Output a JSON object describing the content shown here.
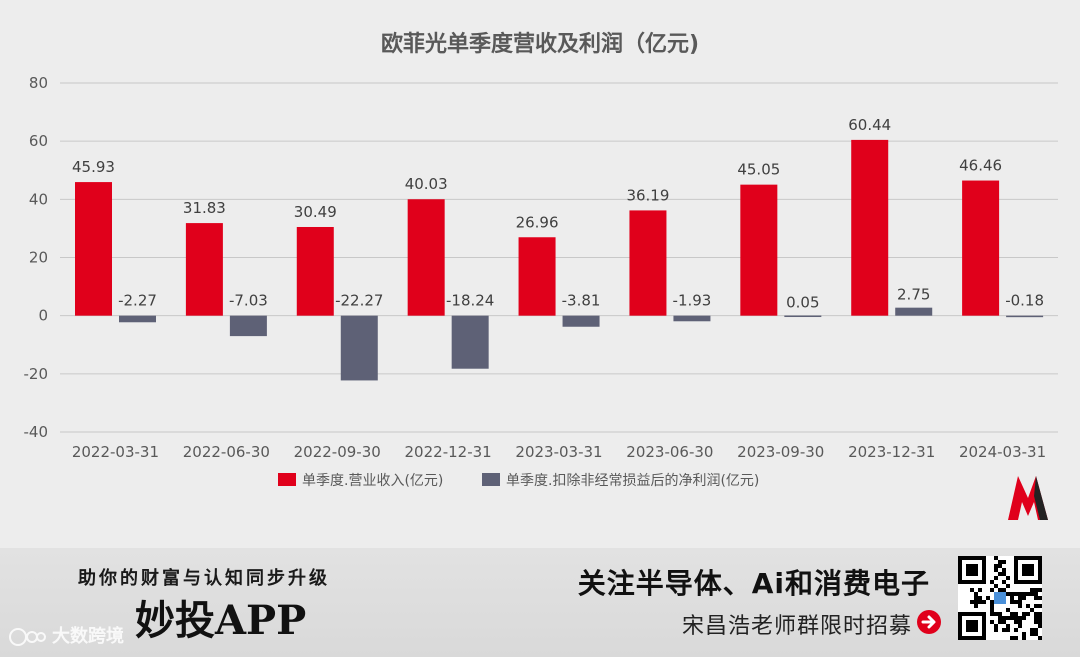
{
  "chart_data": {
    "type": "bar",
    "title": "欧菲光单季度营收及利润（亿元)",
    "categories": [
      "2022-03-31",
      "2022-06-30",
      "2022-09-30",
      "2022-12-31",
      "2023-03-31",
      "2023-06-30",
      "2023-09-30",
      "2023-12-31",
      "2024-03-31"
    ],
    "series": [
      {
        "name": "单季度.营业收入(亿元)",
        "color": "#e0001b",
        "values": [
          45.93,
          31.83,
          30.49,
          40.03,
          26.96,
          36.19,
          45.05,
          60.44,
          46.46
        ],
        "labels": [
          "45.93",
          "31.83",
          "30.49",
          "40.03",
          "26.96",
          "36.19",
          "45.05",
          "60.44",
          "46.46"
        ]
      },
      {
        "name": "单季度.扣除非经常损益后的净利润(亿元)",
        "color": "#5e6176",
        "values": [
          -2.27,
          -7.03,
          -22.27,
          -18.24,
          -3.81,
          -1.93,
          0.05,
          2.75,
          -0.18
        ],
        "labels": [
          "-2.27",
          "-7.03",
          "-22.27",
          "-18.24",
          "-3.81",
          "-1.93",
          "0.05",
          "2.75",
          "-0.18"
        ]
      }
    ],
    "ylim": [
      -40,
      80
    ],
    "yticks": [
      80,
      60,
      40,
      20,
      0,
      -20,
      -40
    ],
    "ytick_labels": [
      "80",
      "60",
      "40",
      "20",
      "0",
      "-20",
      "-40"
    ],
    "xlabel": "",
    "ylabel": "",
    "grid": true,
    "legend": "bottom"
  },
  "banner": {
    "slogan": "助你的财富与认知同步升级",
    "app_name": "妙投APP",
    "headline": "关注半导体、Ai和消费电子",
    "subline": "宋昌浩老师群限时招募",
    "watermark": "大数跨境"
  },
  "icons": {
    "arrow": "arrow-right-circle-icon",
    "qr": "qr-code-icon",
    "logo": "brand-m-logo-icon"
  },
  "colors": {
    "revenue": "#e0001b",
    "profit": "#5e6176",
    "grid": "#c8c8c8"
  }
}
